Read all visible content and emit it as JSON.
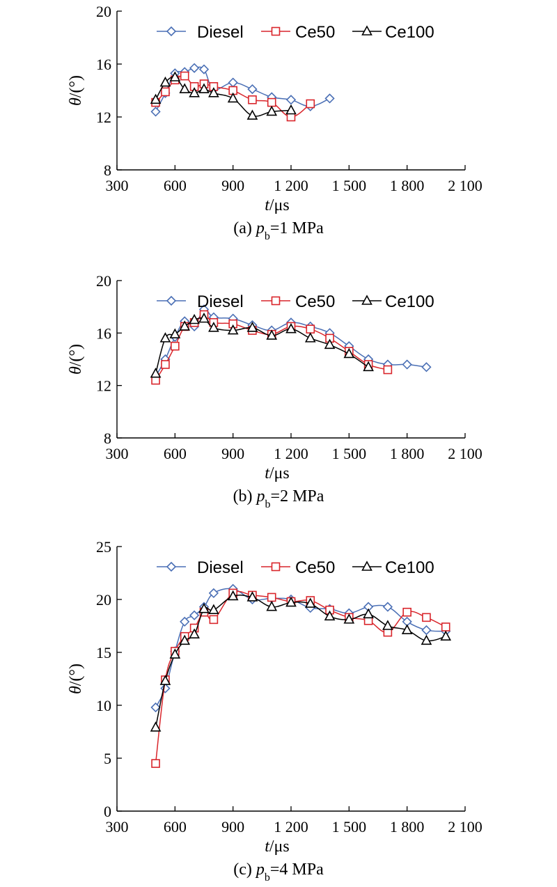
{
  "figure": {
    "colors": {
      "Diesel": "#4a6fb5",
      "Ce50": "#d9252b",
      "Ce100": "#000000"
    }
  },
  "chart_data": [
    {
      "type": "line",
      "caption": "(a) p_b=1 MPa",
      "caption_prefix": "(a) ",
      "caption_var": "p",
      "caption_sub": "b",
      "caption_rest": "=1 MPa",
      "xlabel_var": "t",
      "xlabel_unit": "/μs",
      "ylabel_var": "θ",
      "ylabel_unit": "/(°)",
      "xlim": [
        300,
        2100
      ],
      "ylim": [
        8,
        20
      ],
      "xticks": [
        300,
        600,
        900,
        1200,
        1500,
        1800,
        2100
      ],
      "xtick_labels": [
        "300",
        "600",
        "900",
        "1 200",
        "1 500",
        "1 800",
        "2 100"
      ],
      "yticks": [
        8,
        12,
        16,
        20
      ],
      "ytick_labels": [
        "8",
        "12",
        "16",
        "20"
      ],
      "legend_position": "top",
      "series": [
        {
          "name": "Diesel",
          "marker": "diamond",
          "x": [
            500,
            550,
            600,
            650,
            700,
            750,
            800,
            900,
            1000,
            1100,
            1200,
            1300,
            1400
          ],
          "y": [
            12.4,
            13.8,
            15.3,
            15.4,
            15.7,
            15.6,
            14.1,
            14.6,
            14.1,
            13.5,
            13.3,
            12.8,
            13.4
          ]
        },
        {
          "name": "Ce50",
          "marker": "square",
          "x": [
            500,
            550,
            600,
            650,
            700,
            750,
            800,
            900,
            1000,
            1100,
            1200,
            1300
          ],
          "y": [
            13.1,
            13.9,
            14.8,
            15.1,
            14.3,
            14.5,
            14.3,
            14.0,
            13.3,
            13.1,
            12.0,
            13.0
          ]
        },
        {
          "name": "Ce100",
          "marker": "triangle",
          "x": [
            500,
            550,
            600,
            650,
            700,
            750,
            800,
            900,
            1000,
            1100,
            1200
          ],
          "y": [
            13.3,
            14.6,
            15.0,
            14.1,
            13.8,
            14.1,
            13.8,
            13.4,
            12.1,
            12.4,
            12.5
          ]
        }
      ]
    },
    {
      "type": "line",
      "caption": "(b) p_b=2 MPa",
      "caption_prefix": "(b) ",
      "caption_var": "p",
      "caption_sub": "b",
      "caption_rest": "=2 MPa",
      "xlabel_var": "t",
      "xlabel_unit": "/μs",
      "ylabel_var": "θ",
      "ylabel_unit": "/(°)",
      "xlim": [
        300,
        2100
      ],
      "ylim": [
        8,
        20
      ],
      "xticks": [
        300,
        600,
        900,
        1200,
        1500,
        1800,
        2100
      ],
      "xtick_labels": [
        "300",
        "600",
        "900",
        "1 200",
        "1 500",
        "1 800",
        "2 100"
      ],
      "yticks": [
        8,
        12,
        16,
        20
      ],
      "ytick_labels": [
        "8",
        "12",
        "16",
        "20"
      ],
      "legend_position": "top",
      "series": [
        {
          "name": "Diesel",
          "marker": "diamond",
          "x": [
            500,
            550,
            600,
            650,
            700,
            750,
            800,
            900,
            1000,
            1100,
            1200,
            1300,
            1400,
            1500,
            1600,
            1700,
            1800,
            1900
          ],
          "y": [
            12.7,
            14.0,
            15.7,
            16.9,
            16.5,
            17.8,
            17.2,
            17.1,
            16.6,
            16.2,
            16.8,
            16.5,
            16.0,
            15.0,
            14.0,
            13.6,
            13.6,
            13.4
          ]
        },
        {
          "name": "Ce50",
          "marker": "square",
          "x": [
            500,
            550,
            600,
            650,
            700,
            750,
            800,
            900,
            1000,
            1100,
            1200,
            1300,
            1400,
            1500,
            1600,
            1700
          ],
          "y": [
            12.4,
            13.6,
            15.0,
            16.5,
            16.8,
            17.4,
            16.8,
            16.7,
            16.2,
            15.9,
            16.5,
            16.3,
            15.6,
            14.6,
            13.6,
            13.2
          ]
        },
        {
          "name": "Ce100",
          "marker": "triangle",
          "x": [
            500,
            550,
            600,
            650,
            700,
            750,
            800,
            900,
            1000,
            1100,
            1200,
            1300,
            1400,
            1500,
            1600
          ],
          "y": [
            12.9,
            15.6,
            15.9,
            16.5,
            17.0,
            17.1,
            16.4,
            16.2,
            16.4,
            15.8,
            16.3,
            15.6,
            15.1,
            14.4,
            13.4
          ]
        }
      ]
    },
    {
      "type": "line",
      "caption": "(c) p_b=4 MPa",
      "caption_prefix": "(c) ",
      "caption_var": "p",
      "caption_sub": "b",
      "caption_rest": "=4 MPa",
      "xlabel_var": "t",
      "xlabel_unit": "/μs",
      "ylabel_var": "θ",
      "ylabel_unit": "/(°)",
      "xlim": [
        300,
        2100
      ],
      "ylim": [
        0,
        25
      ],
      "xticks": [
        300,
        600,
        900,
        1200,
        1500,
        1800,
        2100
      ],
      "xtick_labels": [
        "300",
        "600",
        "900",
        "1 200",
        "1 500",
        "1 800",
        "2 100"
      ],
      "yticks": [
        0,
        5,
        10,
        15,
        20,
        25
      ],
      "ytick_labels": [
        "0",
        "5",
        "10",
        "15",
        "20",
        "25"
      ],
      "legend_position": "top",
      "series": [
        {
          "name": "Diesel",
          "marker": "diamond",
          "x": [
            500,
            550,
            600,
            650,
            700,
            750,
            800,
            900,
            1000,
            1100,
            1200,
            1300,
            1400,
            1500,
            1600,
            1700,
            1800,
            1900,
            2000
          ],
          "y": [
            9.8,
            11.6,
            15.1,
            17.9,
            18.5,
            19.3,
            20.6,
            21.0,
            20.0,
            20.1,
            20.0,
            19.2,
            19.1,
            18.7,
            19.3,
            19.3,
            17.9,
            17.1,
            17.0
          ]
        },
        {
          "name": "Ce50",
          "marker": "square",
          "x": [
            500,
            550,
            600,
            650,
            700,
            750,
            800,
            900,
            1000,
            1100,
            1200,
            1300,
            1400,
            1500,
            1600,
            1700,
            1800,
            1900,
            2000
          ],
          "y": [
            4.5,
            12.4,
            15.1,
            16.5,
            17.3,
            18.8,
            18.1,
            20.6,
            20.4,
            20.2,
            19.8,
            19.9,
            19.0,
            18.3,
            18.0,
            16.9,
            18.8,
            18.3,
            17.4
          ]
        },
        {
          "name": "Ce100",
          "marker": "triangle",
          "x": [
            500,
            550,
            600,
            650,
            700,
            750,
            800,
            900,
            1000,
            1100,
            1200,
            1300,
            1400,
            1500,
            1600,
            1700,
            1800,
            1900,
            2000
          ],
          "y": [
            7.9,
            12.3,
            14.8,
            16.1,
            16.7,
            19.1,
            19.0,
            20.3,
            20.2,
            19.3,
            19.7,
            19.6,
            18.4,
            18.1,
            18.6,
            17.5,
            17.1,
            16.1,
            16.5
          ]
        }
      ]
    }
  ]
}
